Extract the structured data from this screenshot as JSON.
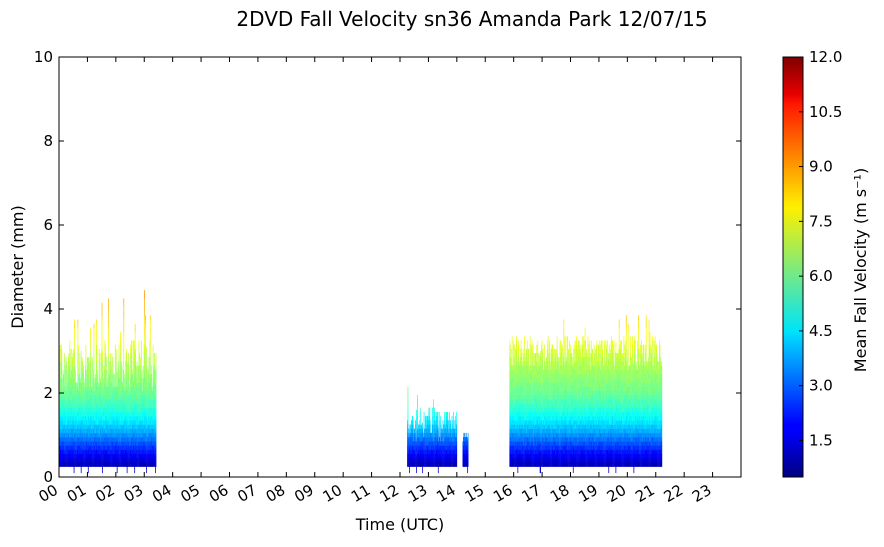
{
  "chart_data": {
    "type": "heatmap",
    "title": "2DVD Fall Velocity sn36 Amanda Park 12/07/15",
    "xlabel": "Time (UTC)",
    "ylabel": "Diameter (mm)",
    "xlim": [
      0,
      24
    ],
    "ylim": [
      0,
      10
    ],
    "x_tick_labels": [
      "00",
      "01",
      "02",
      "03",
      "04",
      "05",
      "06",
      "07",
      "08",
      "09",
      "10",
      "11",
      "12",
      "13",
      "14",
      "15",
      "16",
      "17",
      "18",
      "19",
      "20",
      "21",
      "22",
      "23"
    ],
    "y_tick_labels": [
      "0",
      "2",
      "4",
      "6",
      "8",
      "10"
    ],
    "colorbar": {
      "label": "Mean Fall Velocity (m s⁻¹)",
      "range": [
        0.5,
        12.0
      ],
      "tick_values": [
        1.5,
        3.0,
        4.5,
        6.0,
        7.5,
        9.0,
        10.5,
        12.0
      ],
      "tick_labels": [
        "1.5",
        "3.0",
        "4.5",
        "6.0",
        "7.5",
        "9.0",
        "10.5",
        "12.0"
      ],
      "colormap": "jet"
    },
    "precip_periods": [
      {
        "start_hour": 0.0,
        "end_hour": 3.4,
        "max_diameter_mm": 4.4,
        "typical_top_mm": [
          2.0,
          3.2
        ]
      },
      {
        "start_hour": 12.25,
        "end_hour": 14.0,
        "max_diameter_mm": 2.3,
        "typical_top_mm": [
          0.8,
          1.6
        ]
      },
      {
        "start_hour": 14.2,
        "end_hour": 14.4,
        "max_diameter_mm": 1.0,
        "typical_top_mm": [
          0.8,
          1.0
        ]
      },
      {
        "start_hour": 15.85,
        "end_hour": 21.2,
        "max_diameter_mm": 3.9,
        "typical_top_mm": [
          2.5,
          3.3
        ]
      }
    ],
    "velocity_profile": [
      {
        "diameter_mm": 0.3,
        "mean_fall_velocity": 1.2
      },
      {
        "diameter_mm": 0.5,
        "mean_fall_velocity": 1.8
      },
      {
        "diameter_mm": 0.7,
        "mean_fall_velocity": 2.5
      },
      {
        "diameter_mm": 0.9,
        "mean_fall_velocity": 3.2
      },
      {
        "diameter_mm": 1.1,
        "mean_fall_velocity": 3.9
      },
      {
        "diameter_mm": 1.3,
        "mean_fall_velocity": 4.5
      },
      {
        "diameter_mm": 1.5,
        "mean_fall_velocity": 5.0
      },
      {
        "diameter_mm": 1.7,
        "mean_fall_velocity": 5.5
      },
      {
        "diameter_mm": 2.0,
        "mean_fall_velocity": 6.0
      },
      {
        "diameter_mm": 2.5,
        "mean_fall_velocity": 6.6
      },
      {
        "diameter_mm": 3.0,
        "mean_fall_velocity": 7.2
      },
      {
        "diameter_mm": 3.5,
        "mean_fall_velocity": 7.8
      },
      {
        "diameter_mm": 4.0,
        "mean_fall_velocity": 8.4
      }
    ]
  }
}
